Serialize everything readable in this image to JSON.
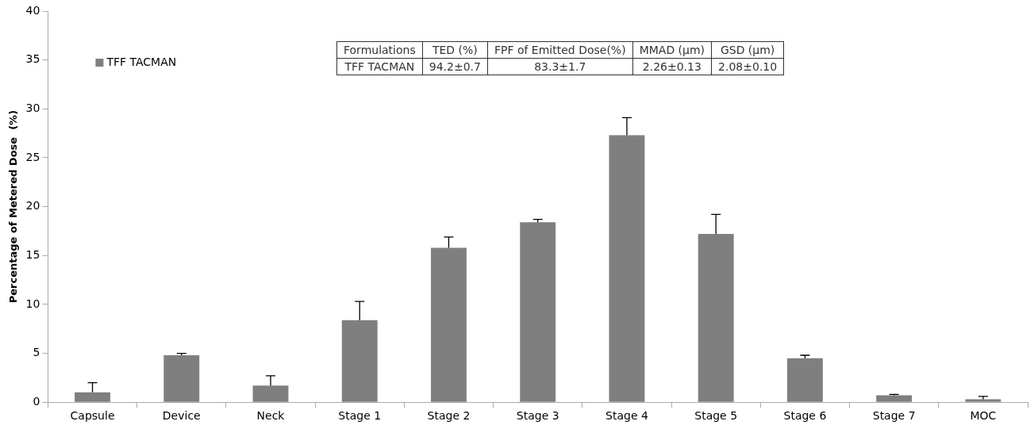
{
  "chart_data": {
    "type": "bar",
    "ylabel": "Percentage of Metered Dose  (%)",
    "categories": [
      "Capsule",
      "Device",
      "Neck",
      "Stage 1",
      "Stage 2",
      "Stage 3",
      "Stage 4",
      "Stage 5",
      "Stage 6",
      "Stage 7",
      "MOC"
    ],
    "series": [
      {
        "name": "TFF TACMAN",
        "color": "#7f7f7f",
        "values": [
          1.0,
          4.8,
          1.7,
          8.4,
          15.8,
          18.4,
          27.3,
          17.2,
          4.5,
          0.7,
          0.3
        ],
        "errors": [
          [
            1.0,
            2.0
          ],
          [
            4.8,
            5.0
          ],
          [
            1.7,
            2.7
          ],
          [
            8.4,
            10.3
          ],
          [
            15.8,
            16.9
          ],
          [
            18.4,
            18.7
          ],
          [
            27.3,
            29.1
          ],
          [
            17.2,
            19.2
          ],
          [
            4.5,
            4.8
          ],
          [
            0.7,
            0.8
          ],
          [
            0.3,
            0.6
          ]
        ]
      }
    ],
    "ylim": [
      0,
      40
    ],
    "yticks": [
      0,
      5,
      10,
      15,
      20,
      25,
      30,
      35,
      40
    ],
    "grid": false,
    "legend": "top left",
    "annotations": [
      "Formulations",
      "TED (%)",
      "FPF of Emitted Dose(%)",
      "MMAD (µm)",
      "GSD (µm)",
      "TFF TACMAN",
      "94.2±0.7",
      "83.3±1.7",
      "2.26±0.13",
      "2.08±0.10"
    ]
  }
}
